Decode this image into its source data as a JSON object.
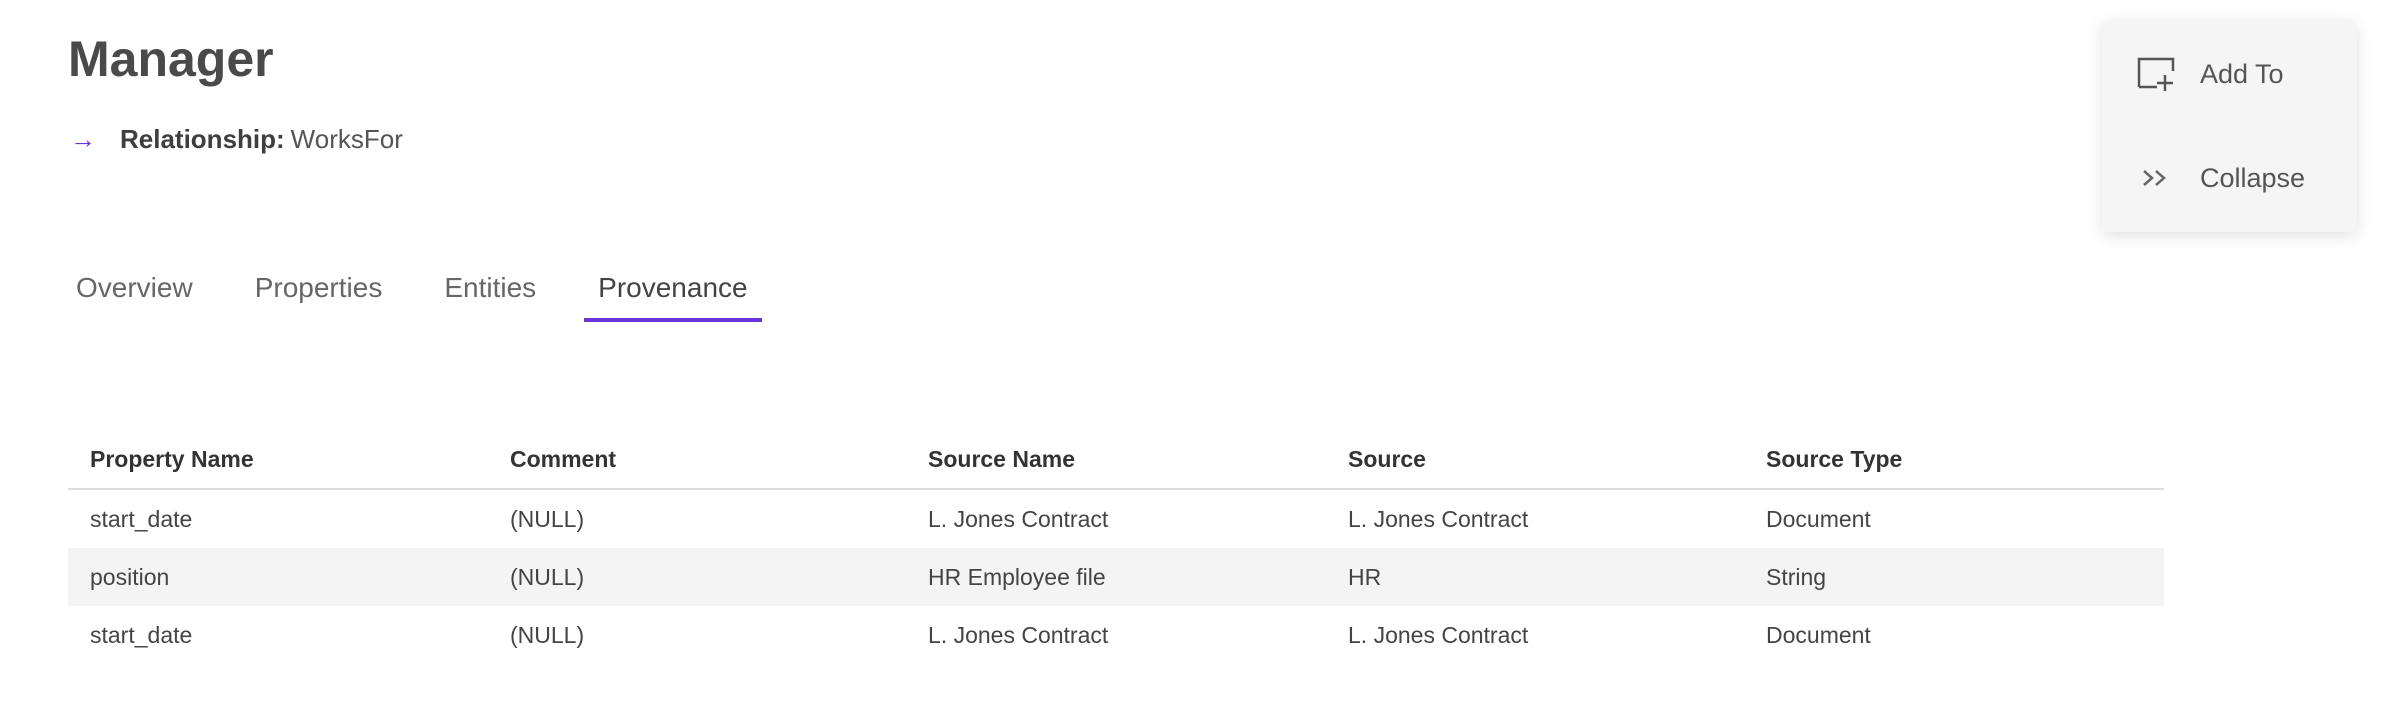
{
  "header": {
    "title": "Manager",
    "relationship_label": "Relationship:",
    "relationship_value": "WorksFor",
    "arrow_icon": "→"
  },
  "tabs": [
    {
      "label": "Overview",
      "active": false
    },
    {
      "label": "Properties",
      "active": false
    },
    {
      "label": "Entities",
      "active": false
    },
    {
      "label": "Provenance",
      "active": true
    }
  ],
  "table": {
    "columns": [
      "Property Name",
      "Comment",
      "Source Name",
      "Source",
      "Source Type"
    ],
    "rows": [
      [
        "start_date",
        "(NULL)",
        "L. Jones Contract",
        "L. Jones Contract",
        "Document"
      ],
      [
        "position",
        "(NULL)",
        "HR Employee file",
        "HR",
        "String"
      ],
      [
        "start_date",
        "(NULL)",
        "L. Jones Contract",
        "L. Jones Contract",
        "Document"
      ]
    ]
  },
  "actions": {
    "add_to": {
      "label": "Add To",
      "icon": "add-to-box-icon"
    },
    "collapse": {
      "label": "Collapse",
      "icon": "double-chevron-right-icon"
    }
  },
  "colors": {
    "accent": "#6a35d8"
  }
}
